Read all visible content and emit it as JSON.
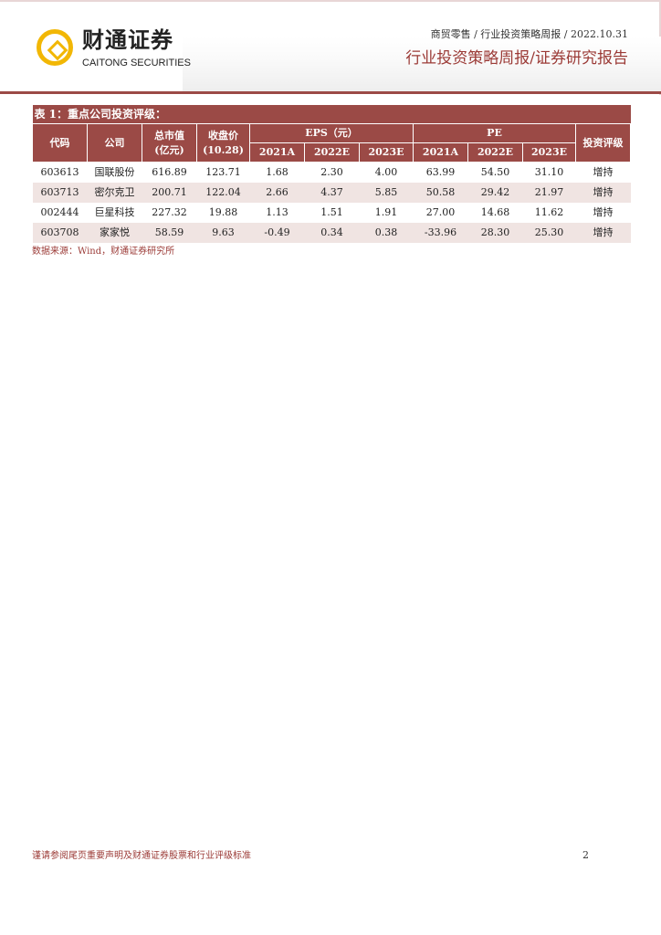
{
  "header": {
    "logo_cn": "财通证券",
    "logo_en": "CAITONG SECURITIES",
    "breadcrumb": "商贸零售  / 行业投资策略周报  / 2022.10.31",
    "report_type": "行业投资策略周报/证券研究报告",
    "logo_color": "#f2b705",
    "accent": "#9b4a46"
  },
  "table": {
    "caption": "表 1：重点公司投资评级：",
    "headers": {
      "code": "代码",
      "company": "公司",
      "mktcap": "总市值\n(亿元)",
      "price": "收盘价\n(10.28)",
      "eps": "EPS（元）",
      "pe": "PE",
      "rating": "投资评级",
      "years": [
        "2021A",
        "2022E",
        "2023E"
      ]
    },
    "rows": [
      [
        "603613",
        "国联股份",
        "616.89",
        "123.71",
        "1.68",
        "2.30",
        "4.00",
        "63.99",
        "54.50",
        "31.10",
        "增持"
      ],
      [
        "603713",
        "密尔克卫",
        "200.71",
        "122.04",
        "2.66",
        "4.37",
        "5.85",
        "50.58",
        "29.42",
        "21.97",
        "增持"
      ],
      [
        "002444",
        "巨星科技",
        "227.32",
        "19.88",
        "1.13",
        "1.51",
        "1.91",
        "27.00",
        "14.68",
        "11.62",
        "增持"
      ],
      [
        "603708",
        "家家悦",
        "58.59",
        "9.63",
        "-0.49",
        "0.34",
        "0.38",
        "-33.96",
        "28.30",
        "25.30",
        "增持"
      ]
    ],
    "source": "数据来源：Wind，财通证券研究所"
  },
  "footer": {
    "disclaimer": "谨请参阅尾页重要声明及财通证券股票和行业评级标准",
    "page": "2"
  }
}
